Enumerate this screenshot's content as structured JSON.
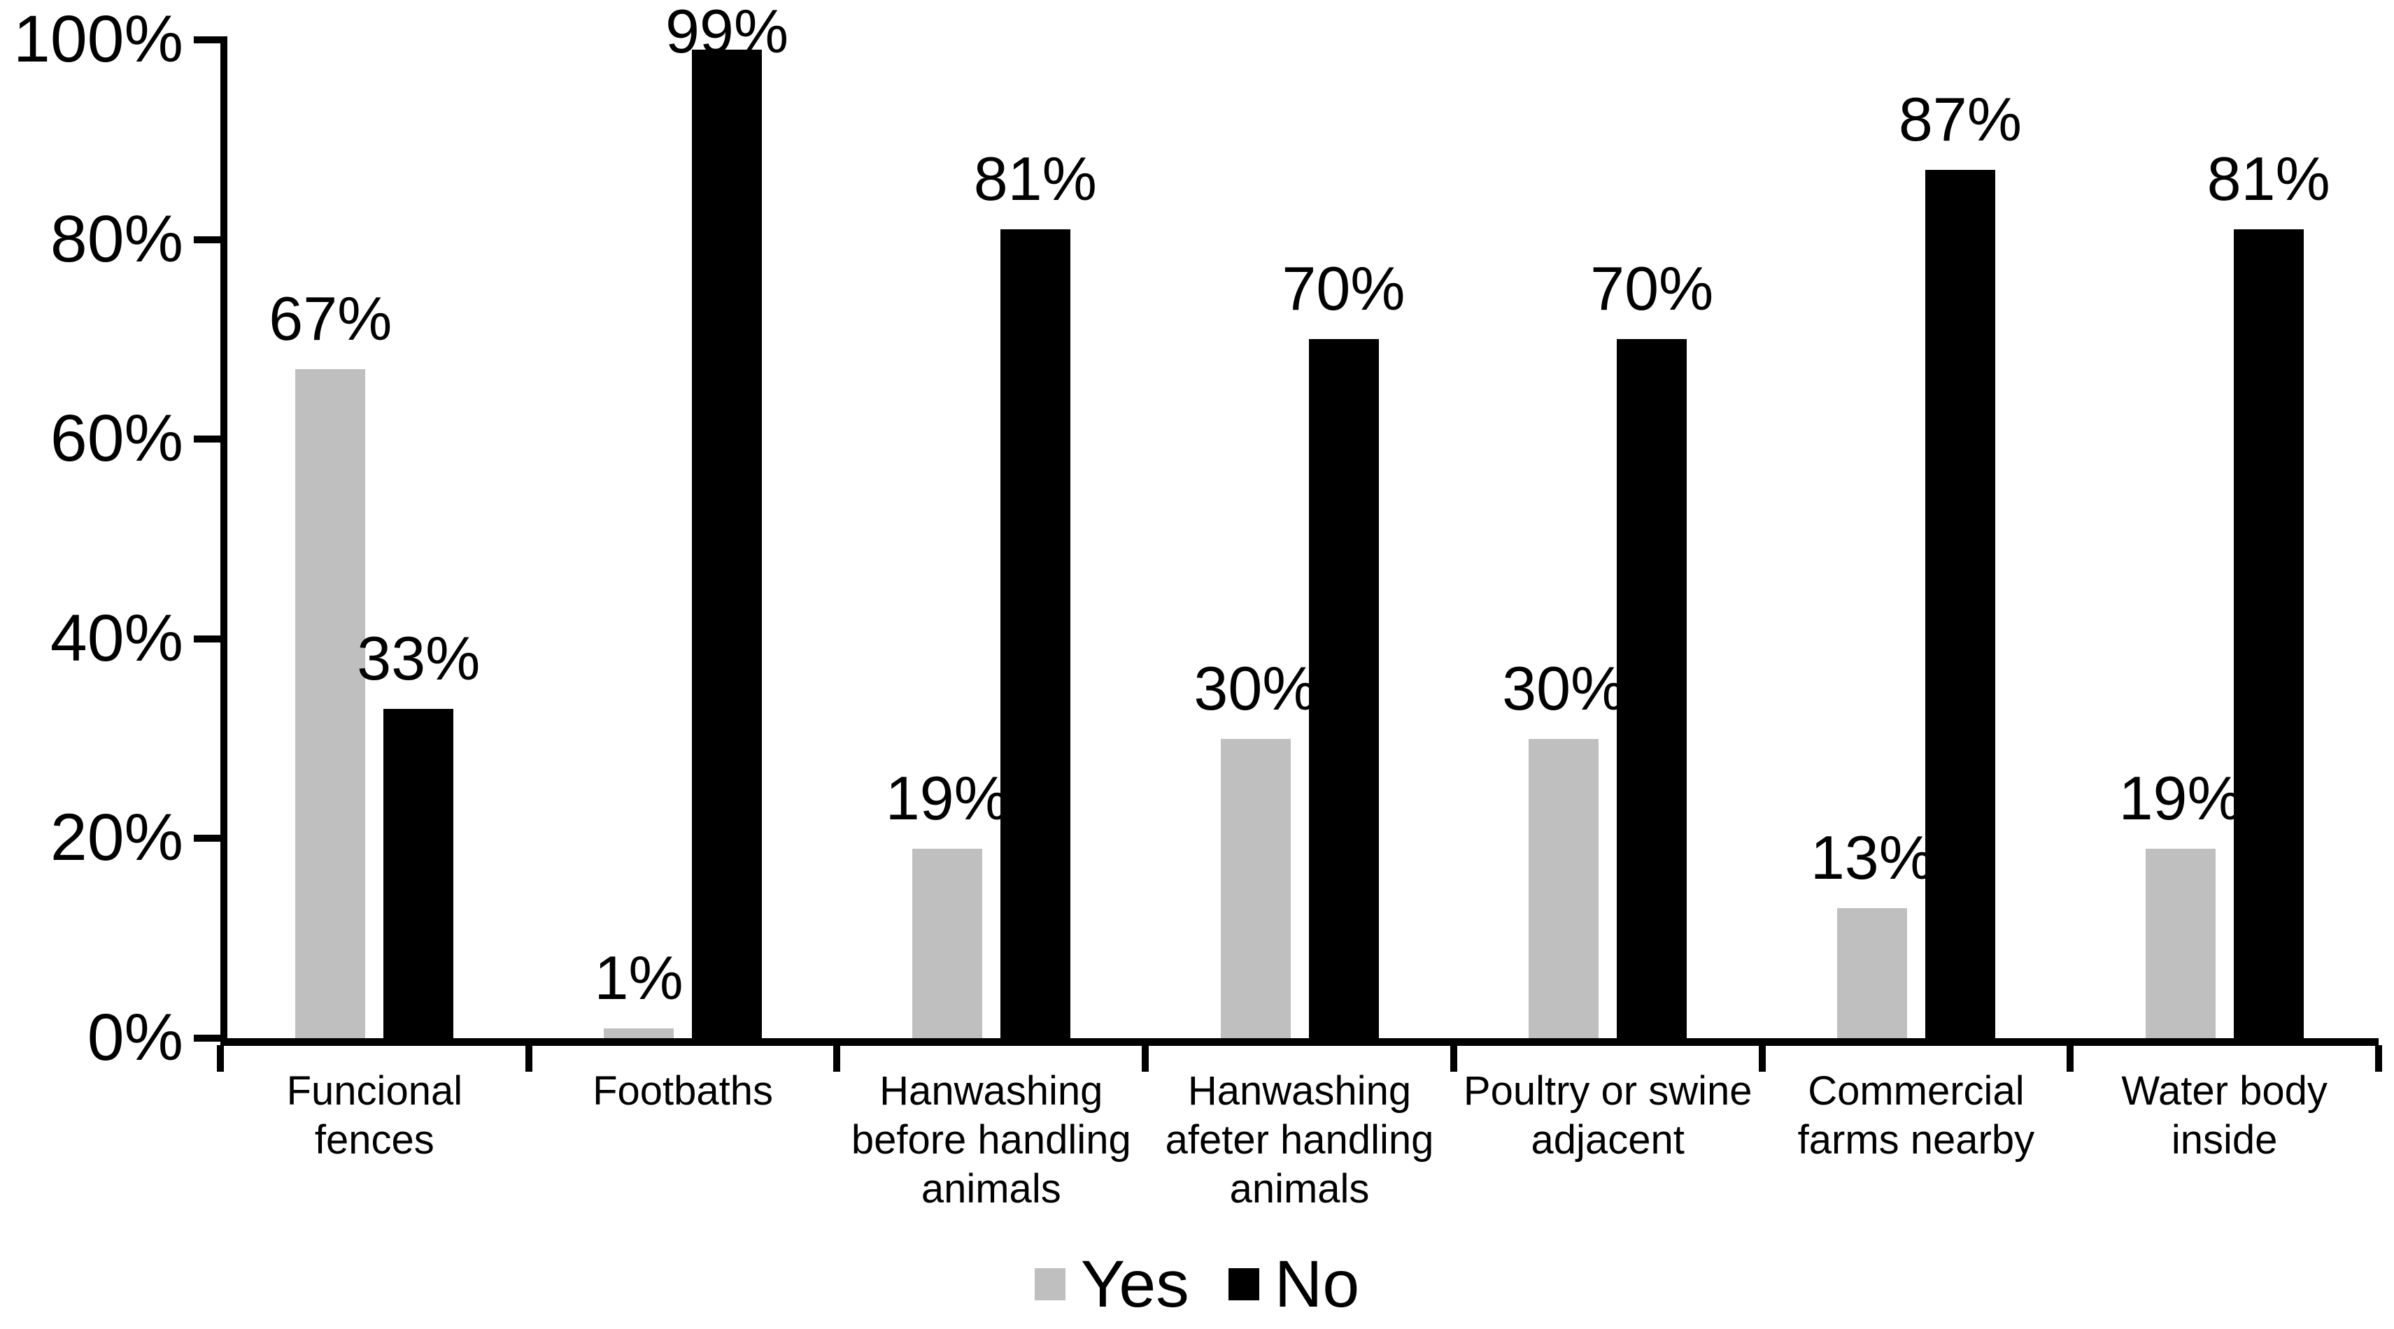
{
  "chart_data": {
    "type": "bar",
    "title": "",
    "xlabel": "",
    "ylabel": "",
    "grid": false,
    "legend_position": "bottom",
    "categories": [
      "Funcional\nfences",
      "Footbaths",
      "Hanwashing\nbefore handling\nanimals",
      "Hanwashing\nafeter handling\nanimals",
      "Poultry or swine\nadjacent",
      "Commercial\nfarms nearby",
      "Water body\ninside"
    ],
    "series": [
      {
        "name": "Yes",
        "color": "#bfbfbf",
        "values": [
          67,
          1,
          19,
          30,
          30,
          13,
          19
        ],
        "value_labels": [
          "67%",
          "1%",
          "19%",
          "30%",
          "30%",
          "13%",
          "19%"
        ]
      },
      {
        "name": "No",
        "color": "#000000",
        "values": [
          33,
          99,
          81,
          70,
          70,
          87,
          81
        ],
        "value_labels": [
          "33%",
          "99%",
          "81%",
          "70%",
          "70%",
          "87%",
          "81%"
        ]
      }
    ],
    "y_axis": {
      "min": 0,
      "max": 100,
      "step": 20,
      "tick_labels": [
        "0%",
        "20%",
        "40%",
        "60%",
        "80%",
        "100%"
      ]
    }
  },
  "colors": {
    "axis": "#000000",
    "background": "#ffffff",
    "bar_yes": "#bfbfbf",
    "bar_no": "#000000"
  }
}
